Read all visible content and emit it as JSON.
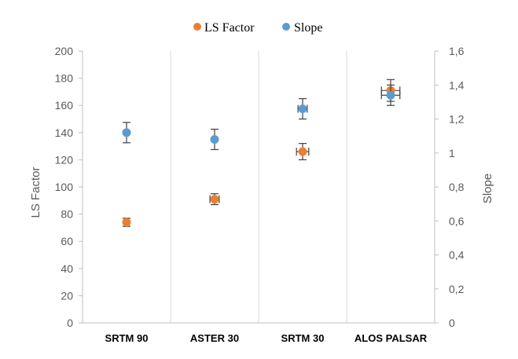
{
  "chart_data": {
    "type": "scatter",
    "categories": [
      "SRTM 90",
      "ASTER 30",
      "SRTM 30",
      "ALOS PALSAR"
    ],
    "series": [
      {
        "name": "LS Factor",
        "axis": "left",
        "color": "#ED7D31",
        "values": [
          74,
          91,
          126,
          171
        ],
        "y_error": [
          3,
          4,
          6,
          8
        ],
        "x_error": [
          0.0,
          0.15,
          0.2,
          0.3
        ]
      },
      {
        "name": "Slope",
        "axis": "right",
        "color": "#5B9BD5",
        "values": [
          1.12,
          1.08,
          1.26,
          1.34
        ],
        "y_error": [
          0.06,
          0.06,
          0.06,
          0.06
        ],
        "x_error": [
          0.0,
          0.0,
          0.15,
          0.3
        ]
      }
    ],
    "y_left": {
      "label": "LS Factor",
      "ylim": [
        0,
        200
      ],
      "ticks": [
        0,
        20,
        40,
        60,
        80,
        100,
        120,
        140,
        160,
        180,
        200
      ],
      "tick_labels": [
        "0",
        "20",
        "40",
        "60",
        "80",
        "100",
        "120",
        "140",
        "160",
        "180",
        "200"
      ]
    },
    "y_right": {
      "label": "Slope",
      "ylim": [
        0,
        1.6
      ],
      "ticks": [
        0,
        0.2,
        0.4,
        0.6,
        0.8,
        1.0,
        1.2,
        1.4,
        1.6
      ],
      "tick_labels": [
        "0",
        "0,2",
        "0,4",
        "0,6",
        "0,8",
        "1",
        "1,2",
        "1,4",
        "1,6"
      ]
    },
    "grid": true,
    "legend_position": "top-center"
  }
}
